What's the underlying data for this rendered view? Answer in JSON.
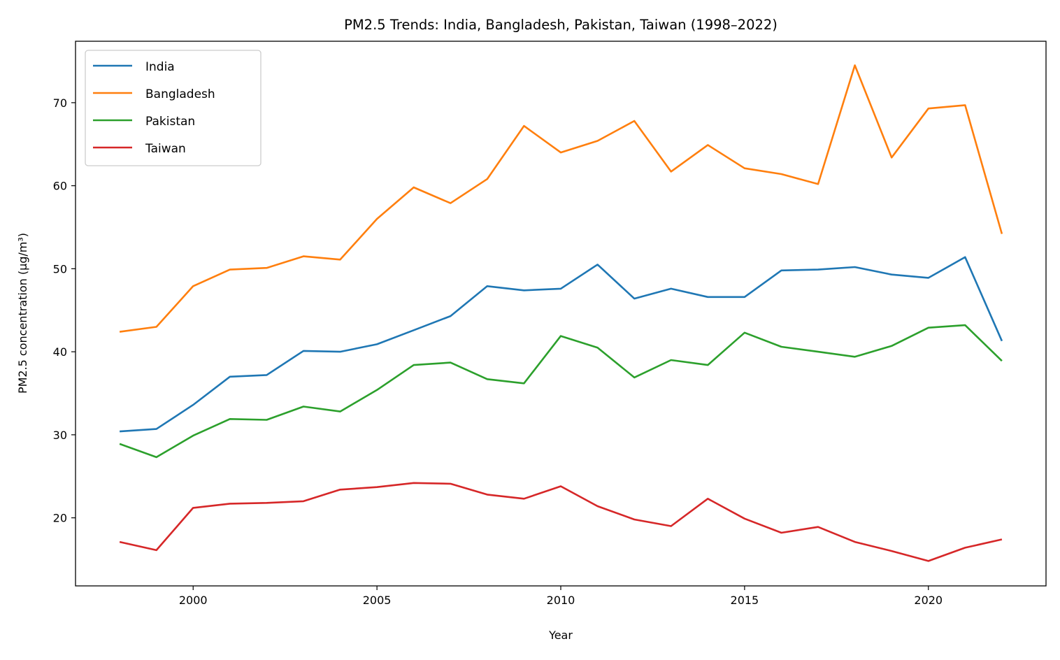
{
  "chart_data": {
    "type": "line",
    "title": "PM2.5 Trends: India, Bangladesh, Pakistan, Taiwan (1998–2022)",
    "xlabel": "Year",
    "ylabel": "PM2.5 concentration (µg/m³)",
    "xlim": [
      1996.8,
      2023.2
    ],
    "ylim": [
      11.8,
      77.4
    ],
    "xticks": [
      2000,
      2005,
      2010,
      2015,
      2020
    ],
    "yticks": [
      20,
      30,
      40,
      50,
      60,
      70
    ],
    "grid": false,
    "legend_position": "top-left",
    "x": [
      1998,
      1999,
      2000,
      2001,
      2002,
      2003,
      2004,
      2005,
      2006,
      2007,
      2008,
      2009,
      2010,
      2011,
      2012,
      2013,
      2014,
      2015,
      2016,
      2017,
      2018,
      2019,
      2020,
      2021,
      2022
    ],
    "series": [
      {
        "name": "India",
        "color": "#1f77b4",
        "values": [
          30.4,
          30.7,
          33.6,
          37.0,
          37.2,
          40.1,
          40.0,
          40.9,
          42.6,
          44.3,
          47.9,
          47.4,
          47.6,
          50.5,
          46.4,
          47.6,
          46.6,
          46.6,
          49.8,
          49.9,
          50.2,
          49.3,
          48.9,
          51.4,
          41.3
        ]
      },
      {
        "name": "Bangladesh",
        "color": "#ff7f0e",
        "values": [
          42.4,
          43.0,
          47.9,
          49.9,
          50.1,
          51.5,
          51.1,
          56.0,
          59.8,
          57.9,
          60.8,
          67.2,
          64.0,
          65.4,
          67.8,
          61.7,
          64.9,
          62.1,
          61.4,
          60.2,
          74.5,
          63.4,
          69.3,
          69.7,
          54.2
        ]
      },
      {
        "name": "Pakistan",
        "color": "#2ca02c",
        "values": [
          28.9,
          27.3,
          29.9,
          31.9,
          31.8,
          33.4,
          32.8,
          35.4,
          38.4,
          38.7,
          36.7,
          36.2,
          41.9,
          40.5,
          36.9,
          39.0,
          38.4,
          42.3,
          40.6,
          40.0,
          39.4,
          40.7,
          42.9,
          43.2,
          38.9
        ]
      },
      {
        "name": "Taiwan",
        "color": "#d62728",
        "values": [
          17.1,
          16.1,
          21.2,
          21.7,
          21.8,
          22.0,
          23.4,
          23.7,
          24.2,
          24.1,
          22.8,
          22.3,
          23.8,
          21.4,
          19.8,
          19.0,
          22.3,
          19.9,
          18.2,
          18.9,
          17.1,
          16.0,
          14.8,
          16.4,
          17.4
        ]
      }
    ]
  }
}
